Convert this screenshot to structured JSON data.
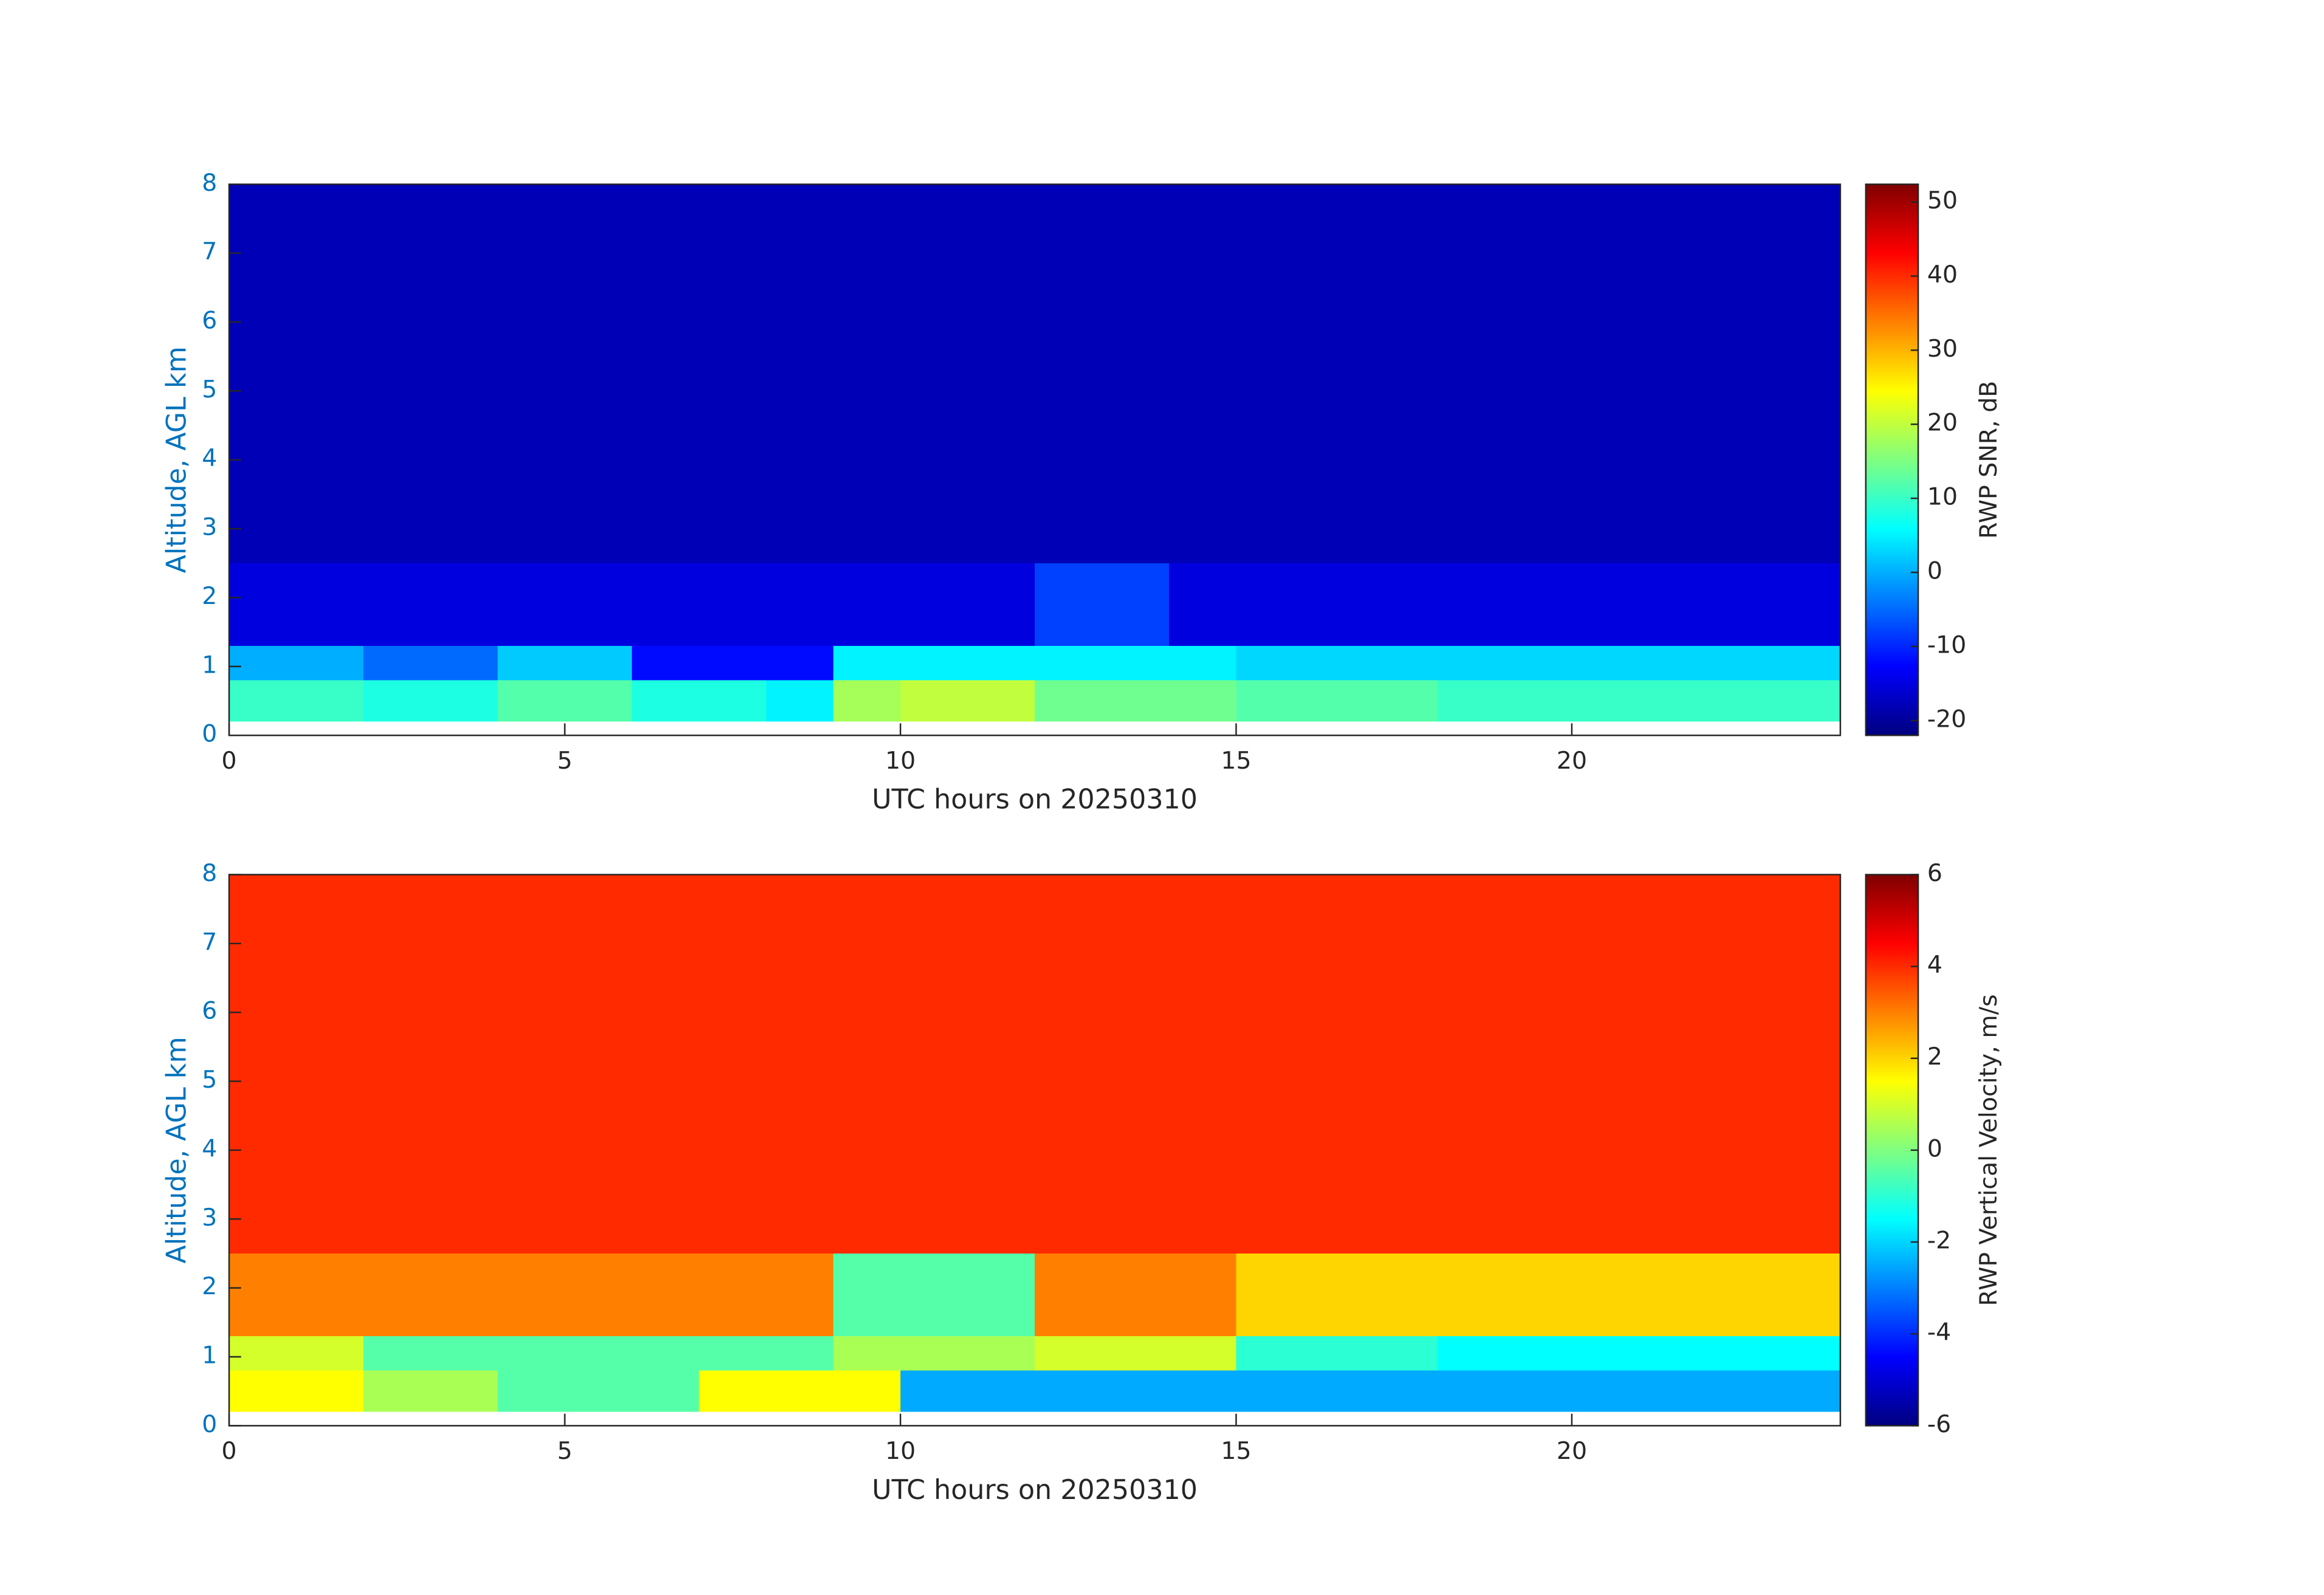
{
  "chart_data": [
    {
      "type": "heatmap",
      "colormap": "jet",
      "xlabel": "UTC hours on 20250310",
      "ylabel": "Altitude, AGL km",
      "x": [
        0,
        1,
        2,
        3,
        4,
        5,
        6,
        7,
        8,
        9,
        10,
        11,
        12,
        13,
        14,
        15,
        16,
        17,
        18,
        19,
        20,
        21,
        22,
        23,
        24
      ],
      "y": [
        0.2,
        0.8,
        1.3,
        2.5,
        8
      ],
      "z": [
        [
          10,
          10,
          8,
          8,
          12,
          12,
          8,
          8,
          5,
          18,
          20,
          20,
          14,
          14,
          14,
          12,
          12,
          12,
          10,
          10,
          10,
          10,
          10,
          10
        ],
        [
          0,
          0,
          -5,
          -5,
          2,
          2,
          -12,
          -12,
          -12,
          5,
          5,
          5,
          5,
          5,
          5,
          3,
          3,
          3,
          3,
          3,
          3,
          3,
          3,
          3
        ],
        [
          -15,
          -15,
          -15,
          -15,
          -15,
          -15,
          -15,
          -15,
          -15,
          -15,
          -15,
          -15,
          -8,
          -8,
          -15,
          -15,
          -15,
          -15,
          -15,
          -15,
          -15,
          -15,
          -15,
          -15
        ],
        [
          -18,
          -18,
          -18,
          -18,
          -18,
          -18,
          -18,
          -18,
          -18,
          -18,
          -18,
          -18,
          -18,
          -18,
          -18,
          -18,
          -18,
          -18,
          -18,
          -18,
          -18,
          -18,
          -18,
          -18
        ]
      ],
      "xlim": [
        0,
        24
      ],
      "xticks": [
        0,
        5,
        10,
        15,
        20
      ],
      "ylim": [
        0,
        8
      ],
      "yticks": [
        0,
        1,
        2,
        3,
        4,
        5,
        6,
        7,
        8
      ],
      "colorbar": {
        "label": "RWP SNR, dB",
        "clim": [
          -22,
          52.4
        ],
        "ticks": [
          -20,
          -10,
          0,
          10,
          20,
          30,
          40,
          50
        ]
      }
    },
    {
      "type": "heatmap",
      "colormap": "jet",
      "xlabel": "UTC hours on 20250310",
      "ylabel": "Altitude, AGL km",
      "x": [
        0,
        1,
        2,
        3,
        4,
        5,
        6,
        7,
        8,
        9,
        10,
        11,
        12,
        13,
        14,
        15,
        16,
        17,
        18,
        19,
        20,
        21,
        22,
        23,
        24
      ],
      "y": [
        0.2,
        0.8,
        1.3,
        2.5,
        8
      ],
      "z": [
        [
          1.5,
          1.5,
          0.5,
          0.5,
          -0.5,
          -0.5,
          -0.5,
          1.5,
          1.5,
          1.5,
          -2.5,
          -2.5,
          -2.5,
          -2.5,
          -2.5,
          -2.5,
          -2.5,
          -2.5,
          -2.5,
          -2.5,
          -2.5,
          -2.5,
          -2.5,
          -2.5
        ],
        [
          1,
          1,
          -0.5,
          -0.5,
          -0.5,
          -0.5,
          -0.5,
          -0.5,
          -0.5,
          0.5,
          0.5,
          0.5,
          1,
          1,
          1,
          -1,
          -1,
          -1,
          -1.5,
          -1.5,
          -1.5,
          -1.5,
          -1.5,
          -1.5
        ],
        [
          3,
          3,
          3,
          3,
          3,
          3,
          3,
          3,
          3,
          -0.5,
          -0.5,
          -0.5,
          3,
          3,
          3,
          2,
          2,
          2,
          2,
          2,
          2,
          2,
          2,
          2
        ],
        [
          4,
          4,
          4,
          4,
          4,
          4,
          4,
          4,
          4,
          4,
          4,
          4,
          4,
          4,
          4,
          4,
          4,
          4,
          4,
          4,
          4,
          4,
          4,
          4
        ]
      ],
      "xlim": [
        0,
        24
      ],
      "xticks": [
        0,
        5,
        10,
        15,
        20
      ],
      "ylim": [
        0,
        8
      ],
      "yticks": [
        0,
        1,
        2,
        3,
        4,
        5,
        6,
        7,
        8
      ],
      "colorbar": {
        "label": "RWP Vertical Velocity, m/s",
        "clim": [
          -6,
          6
        ],
        "ticks": [
          -6,
          -4,
          -2,
          0,
          2,
          4,
          6
        ]
      }
    }
  ]
}
